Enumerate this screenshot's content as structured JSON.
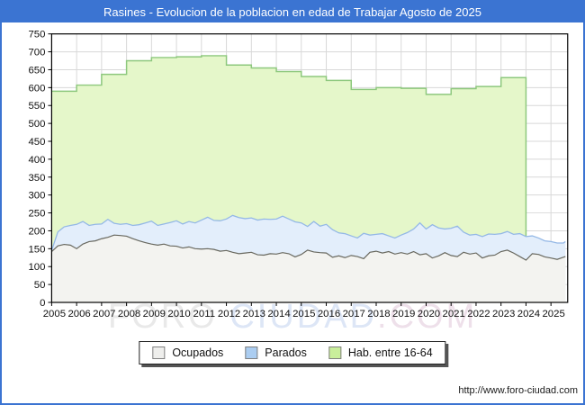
{
  "window": {
    "title": "Rasines - Evolucion de la poblacion en edad de Trabajar Agosto de 2025"
  },
  "watermark": {
    "part1": "FORO",
    "part2": "CIUDAD",
    "part3": ".COM"
  },
  "footer": {
    "url": "http://www.foro-ciudad.com"
  },
  "colors": {
    "header_blue": "#3b74d2",
    "plot_border": "#000000",
    "gridline": "#d8d8d8",
    "hab_fill": "#e5f7ca",
    "hab_line": "#8dc87d",
    "parados_fill": "#e3eefb",
    "parados_line": "#94b8e6",
    "ocupados_fill": "#f3f3f0",
    "ocupados_line": "#68685f",
    "watermark_part1": "#e9e9e9",
    "watermark_part2": "#dde6f6",
    "watermark_part3": "#eee0ea",
    "tick_text": "#111111"
  },
  "legend": {
    "items": [
      {
        "label": "Ocupados",
        "swatch_color": "#eeeeec"
      },
      {
        "label": "Parados",
        "swatch_color": "#abcdf1"
      },
      {
        "label": "Hab. entre 16-64",
        "swatch_color": "#c9ee9b"
      }
    ]
  },
  "chart_data": {
    "type": "area",
    "title": "Rasines - Evolucion de la poblacion en edad de Trabajar Agosto de 2025",
    "xlabel": "",
    "ylabel": "",
    "grid": true,
    "legend_position": "bottom",
    "x_axis": {
      "range": [
        2005,
        2025.67
      ],
      "ticks": [
        2005,
        2006,
        2007,
        2008,
        2009,
        2010,
        2011,
        2012,
        2013,
        2014,
        2015,
        2016,
        2017,
        2018,
        2019,
        2020,
        2021,
        2022,
        2023,
        2024,
        2025
      ]
    },
    "y_axis": {
      "range": [
        0,
        750
      ],
      "ticks": [
        0,
        50,
        100,
        150,
        200,
        250,
        300,
        350,
        400,
        450,
        500,
        550,
        600,
        650,
        700,
        750
      ]
    },
    "hab_16_64": {
      "name": "Hab. entre 16-64",
      "style": "annual-steps",
      "years": [
        2005,
        2006,
        2007,
        2008,
        2009,
        2010,
        2011,
        2012,
        2013,
        2014,
        2015,
        2016,
        2017,
        2018,
        2019,
        2020,
        2021,
        2022,
        2023
      ],
      "values": [
        590,
        607,
        637,
        675,
        684,
        686,
        689,
        663,
        655,
        645,
        631,
        620,
        595,
        600,
        598,
        581,
        597,
        603,
        628
      ],
      "ends_at_x": 2024.0
    },
    "monthly_series": {
      "note": "Parados is drawn stacked on top of Ocupados; values sampled quarterly through Aug 2025",
      "x": [
        2005.0,
        2005.25,
        2005.5,
        2005.75,
        2006.0,
        2006.25,
        2006.5,
        2006.75,
        2007.0,
        2007.25,
        2007.5,
        2007.75,
        2008.0,
        2008.25,
        2008.5,
        2008.75,
        2009.0,
        2009.25,
        2009.5,
        2009.75,
        2010.0,
        2010.25,
        2010.5,
        2010.75,
        2011.0,
        2011.25,
        2011.5,
        2011.75,
        2012.0,
        2012.25,
        2012.5,
        2012.75,
        2013.0,
        2013.25,
        2013.5,
        2013.75,
        2014.0,
        2014.25,
        2014.5,
        2014.75,
        2015.0,
        2015.25,
        2015.5,
        2015.75,
        2016.0,
        2016.25,
        2016.5,
        2016.75,
        2017.0,
        2017.25,
        2017.5,
        2017.75,
        2018.0,
        2018.25,
        2018.5,
        2018.75,
        2019.0,
        2019.25,
        2019.5,
        2019.75,
        2020.0,
        2020.25,
        2020.5,
        2020.75,
        2021.0,
        2021.25,
        2021.5,
        2021.75,
        2022.0,
        2022.25,
        2022.5,
        2022.75,
        2023.0,
        2023.25,
        2023.5,
        2023.75,
        2024.0,
        2024.25,
        2024.5,
        2024.75,
        2025.0,
        2025.25,
        2025.5,
        2025.58
      ],
      "ocupados": [
        142,
        158,
        162,
        160,
        150,
        163,
        170,
        172,
        178,
        182,
        188,
        187,
        185,
        178,
        172,
        167,
        163,
        160,
        163,
        158,
        157,
        152,
        155,
        150,
        149,
        150,
        148,
        143,
        145,
        140,
        136,
        138,
        140,
        133,
        132,
        136,
        135,
        139,
        136,
        127,
        134,
        146,
        141,
        139,
        138,
        126,
        130,
        125,
        131,
        128,
        122,
        140,
        143,
        138,
        142,
        135,
        139,
        135,
        142,
        133,
        136,
        124,
        130,
        139,
        131,
        128,
        140,
        135,
        138,
        124,
        130,
        132,
        142,
        146,
        138,
        128,
        118,
        136,
        134,
        127,
        124,
        120,
        126,
        128
      ],
      "parados": [
        3,
        39,
        49,
        55,
        68,
        63,
        45,
        46,
        41,
        50,
        33,
        31,
        35,
        37,
        45,
        55,
        64,
        55,
        56,
        65,
        71,
        67,
        71,
        72,
        81,
        88,
        81,
        85,
        88,
        103,
        101,
        96,
        96,
        97,
        101,
        96,
        98,
        102,
        97,
        98,
        88,
        66,
        85,
        74,
        80,
        77,
        64,
        67,
        55,
        52,
        71,
        48,
        47,
        54,
        44,
        45,
        49,
        60,
        63,
        89,
        69,
        93,
        78,
        66,
        76,
        85,
        56,
        53,
        52,
        60,
        61,
        58,
        50,
        52,
        52,
        64,
        66,
        50,
        46,
        45,
        46,
        46,
        40,
        42
      ]
    }
  }
}
